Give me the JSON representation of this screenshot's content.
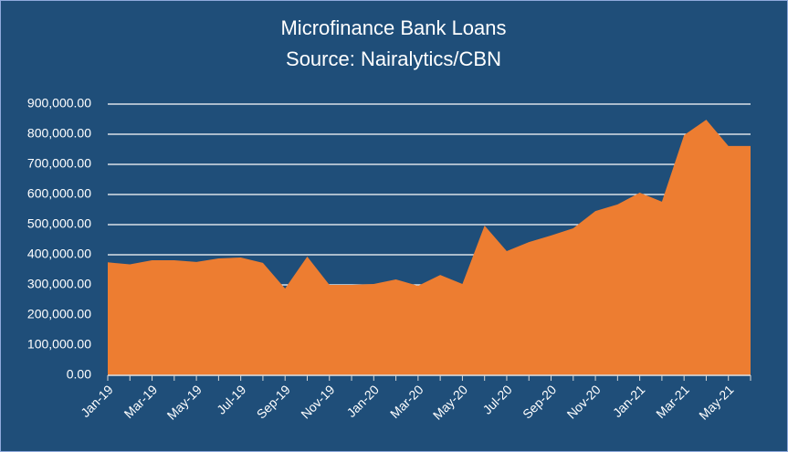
{
  "chart_data": {
    "type": "area",
    "title": "Microfinance Bank Loans",
    "subtitle": "Source: Nairalytics/CBN",
    "categories": [
      "Jan-19",
      null,
      "Mar-19",
      null,
      "May-19",
      null,
      "Jul-19",
      null,
      "Sep-19",
      null,
      "Nov-19",
      null,
      "Jan-20",
      null,
      "Mar-20",
      null,
      "May-20",
      null,
      "Jul-20",
      null,
      "Sep-20",
      null,
      "Nov-20",
      null,
      "Jan-21",
      null,
      "Mar-21",
      null,
      "May-21",
      null
    ],
    "values": [
      375000,
      368000,
      382000,
      382000,
      376000,
      388000,
      391000,
      373000,
      288000,
      394000,
      300000,
      300000,
      303000,
      318000,
      297000,
      333000,
      303000,
      497000,
      412000,
      442000,
      464000,
      488000,
      545000,
      567000,
      606000,
      576000,
      797000,
      848000,
      761000,
      761000
    ],
    "color": "#ed7d31",
    "ylim": [
      0,
      900000
    ],
    "yticks": [
      {
        "value": 0,
        "label": "0.00"
      },
      {
        "value": 100000,
        "label": "100,000.00"
      },
      {
        "value": 200000,
        "label": "200,000.00"
      },
      {
        "value": 300000,
        "label": "300,000.00"
      },
      {
        "value": 400000,
        "label": "400,000.00"
      },
      {
        "value": 500000,
        "label": "500,000.00"
      },
      {
        "value": 600000,
        "label": "600,000.00"
      },
      {
        "value": 700000,
        "label": "700,000.00"
      },
      {
        "value": 800000,
        "label": "800,000.00"
      },
      {
        "value": 900000,
        "label": "900,000.00"
      }
    ],
    "grid": true
  }
}
